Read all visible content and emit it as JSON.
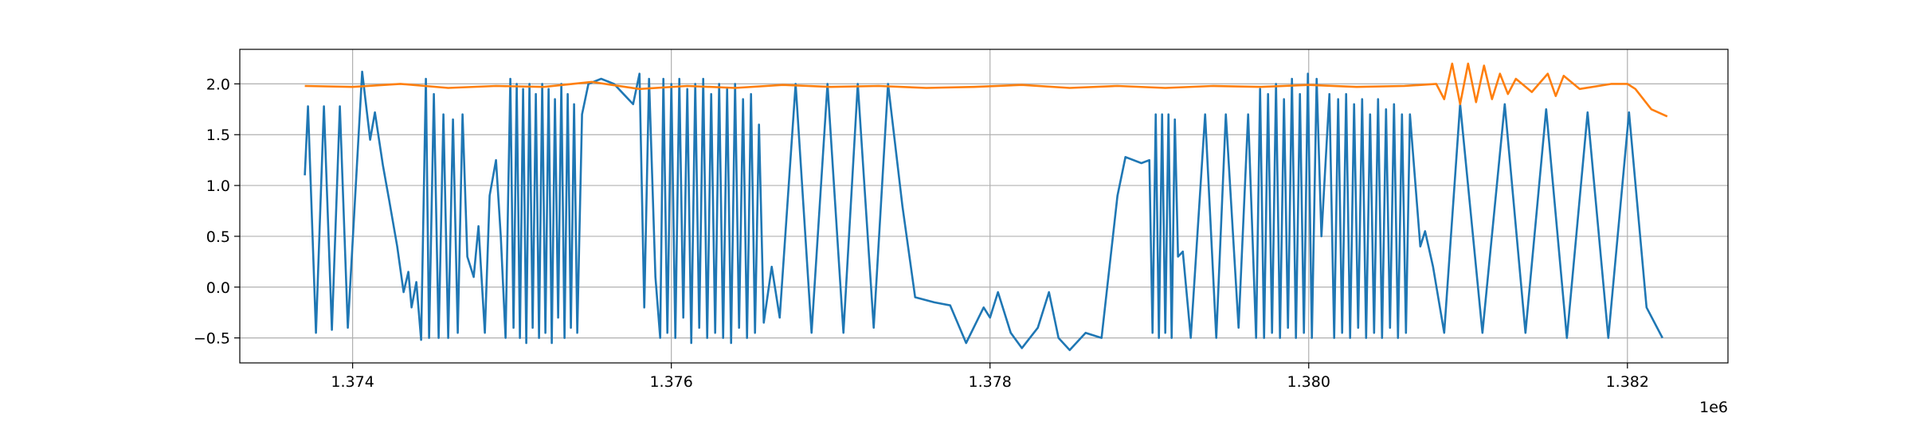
{
  "chart_data": {
    "type": "line",
    "xlim": [
      1373292,
      1382631
    ],
    "ylim": [
      -0.746,
      2.34
    ],
    "grid": true,
    "xticks": [
      {
        "value": 1374000,
        "label": "1.374"
      },
      {
        "value": 1376000,
        "label": "1.376"
      },
      {
        "value": 1378000,
        "label": "1.378"
      },
      {
        "value": 1380000,
        "label": "1.380"
      },
      {
        "value": 1382000,
        "label": "1.382"
      }
    ],
    "x_offset_label": "1e6",
    "yticks": [
      {
        "value": -0.5,
        "label": "−0.5"
      },
      {
        "value": 0,
        "label": "0.0"
      },
      0.5,
      {
        "value": 1,
        "label": "1.0"
      },
      1.5,
      {
        "value": 2,
        "label": "2.0"
      }
    ],
    "series": [
      {
        "color": "#1f77b4",
        "x": [
          1373700,
          1373720,
          1373770,
          1373820,
          1373870,
          1373920,
          1373970,
          1374060,
          1374110,
          1374140,
          1374190,
          1374230,
          1374280,
          1374320,
          1374350,
          1374370,
          1374400,
          1374430,
          1374460,
          1374480,
          1374510,
          1374540,
          1374570,
          1374600,
          1374630,
          1374660,
          1374690,
          1374720,
          1374760,
          1374790,
          1374830,
          1374860,
          1374900,
          1374930,
          1374960,
          1374990,
          1375010,
          1375030,
          1375050,
          1375070,
          1375090,
          1375110,
          1375130,
          1375150,
          1375170,
          1375190,
          1375210,
          1375230,
          1375250,
          1375270,
          1375290,
          1375310,
          1375330,
          1375350,
          1375370,
          1375390,
          1375410,
          1375440,
          1375480,
          1375560,
          1375640,
          1375700,
          1375760,
          1375800,
          1375830,
          1375860,
          1375900,
          1375930,
          1375950,
          1375975,
          1376000,
          1376025,
          1376050,
          1376075,
          1376100,
          1376125,
          1376150,
          1376175,
          1376200,
          1376225,
          1376250,
          1376275,
          1376300,
          1376325,
          1376350,
          1376375,
          1376400,
          1376425,
          1376450,
          1376475,
          1376500,
          1376525,
          1376550,
          1376580,
          1376630,
          1376680,
          1376780,
          1376880,
          1376980,
          1377080,
          1377170,
          1377270,
          1377360,
          1377450,
          1377530,
          1377650,
          1377750,
          1377850,
          1377960,
          1378000,
          1378050,
          1378130,
          1378200,
          1378300,
          1378370,
          1378430,
          1378500,
          1378600,
          1378700,
          1378800,
          1378850,
          1378950,
          1379000,
          1379020,
          1379040,
          1379060,
          1379080,
          1379100,
          1379120,
          1379140,
          1379160,
          1379180,
          1379210,
          1379260,
          1379350,
          1379420,
          1379480,
          1379560,
          1379620,
          1379670,
          1379695,
          1379720,
          1379745,
          1379770,
          1379795,
          1379820,
          1379845,
          1379870,
          1379895,
          1379920,
          1379945,
          1379970,
          1379995,
          1380020,
          1380050,
          1380080,
          1380130,
          1380160,
          1380185,
          1380210,
          1380235,
          1380260,
          1380285,
          1380310,
          1380335,
          1380360,
          1380385,
          1380410,
          1380435,
          1380460,
          1380485,
          1380510,
          1380535,
          1380560,
          1380585,
          1380610,
          1380635,
          1380700,
          1380730,
          1380780,
          1380850,
          1380950,
          1381090,
          1381230,
          1381360,
          1381490,
          1381620,
          1381750,
          1381880,
          1382010,
          1382120,
          1382220
        ],
        "values": [
          1.1,
          1.78,
          -0.45,
          1.78,
          -0.42,
          1.78,
          -0.4,
          2.12,
          1.45,
          1.72,
          1.2,
          0.85,
          0.4,
          -0.05,
          0.15,
          -0.2,
          0.05,
          -0.52,
          2.05,
          -0.5,
          1.9,
          -0.5,
          1.7,
          -0.5,
          1.65,
          -0.45,
          1.7,
          0.3,
          0.1,
          0.6,
          -0.45,
          0.9,
          1.25,
          0.5,
          -0.5,
          2.05,
          -0.4,
          2.0,
          -0.5,
          1.95,
          -0.55,
          2.0,
          -0.4,
          1.9,
          -0.5,
          2.0,
          -0.45,
          1.95,
          -0.55,
          1.85,
          -0.3,
          2.0,
          -0.5,
          1.9,
          -0.4,
          1.8,
          -0.45,
          1.7,
          2.0,
          2.05,
          2.0,
          1.9,
          1.8,
          2.1,
          -0.2,
          2.05,
          0.1,
          -0.5,
          2.05,
          -0.45,
          2.0,
          -0.5,
          2.05,
          -0.3,
          1.95,
          -0.55,
          2.0,
          -0.4,
          2.05,
          -0.5,
          1.9,
          -0.45,
          2.0,
          -0.5,
          1.95,
          -0.55,
          2.0,
          -0.4,
          1.85,
          -0.5,
          1.9,
          -0.45,
          1.6,
          -0.35,
          0.2,
          -0.3,
          2.0,
          -0.45,
          2.0,
          -0.45,
          2.0,
          -0.4,
          2.0,
          0.8,
          -0.1,
          -0.15,
          -0.18,
          -0.55,
          -0.2,
          -0.3,
          -0.05,
          -0.45,
          -0.6,
          -0.4,
          -0.05,
          -0.5,
          -0.62,
          -0.45,
          -0.5,
          0.9,
          1.28,
          1.22,
          1.25,
          -0.45,
          1.7,
          -0.5,
          1.7,
          -0.45,
          1.7,
          -0.5,
          1.65,
          0.3,
          0.35,
          -0.5,
          1.7,
          -0.5,
          1.7,
          -0.4,
          1.7,
          -0.5,
          1.95,
          -0.5,
          1.9,
          -0.45,
          2.0,
          -0.5,
          1.85,
          -0.4,
          2.05,
          -0.5,
          1.9,
          -0.45,
          2.1,
          -0.5,
          2.05,
          0.5,
          1.9,
          -0.5,
          1.85,
          -0.45,
          1.9,
          -0.5,
          1.8,
          -0.4,
          1.85,
          -0.5,
          1.7,
          -0.45,
          1.85,
          -0.5,
          1.75,
          -0.4,
          1.8,
          -0.5,
          1.7,
          -0.45,
          1.7,
          0.4,
          0.55,
          0.2,
          -0.45,
          1.8,
          -0.45,
          1.8,
          -0.45,
          1.75,
          -0.5,
          1.72,
          -0.5,
          1.72,
          -0.2,
          -0.5
        ]
      },
      {
        "color": "#ff7f0e",
        "x": [
          1373700,
          1374000,
          1374300,
          1374600,
          1374900,
          1375200,
          1375500,
          1375800,
          1376100,
          1376400,
          1376700,
          1377000,
          1377300,
          1377600,
          1377900,
          1378200,
          1378500,
          1378800,
          1379100,
          1379400,
          1379700,
          1380000,
          1380300,
          1380600,
          1380800,
          1380850,
          1380900,
          1380950,
          1381000,
          1381050,
          1381100,
          1381150,
          1381200,
          1381250,
          1381300,
          1381400,
          1381500,
          1381550,
          1381600,
          1381700,
          1381900,
          1382000,
          1382050,
          1382100,
          1382150,
          1382250
        ],
        "values": [
          1.98,
          1.97,
          2.0,
          1.96,
          1.98,
          1.97,
          2.02,
          1.95,
          1.98,
          1.96,
          1.99,
          1.97,
          1.98,
          1.96,
          1.97,
          1.99,
          1.96,
          1.98,
          1.96,
          1.98,
          1.97,
          1.99,
          1.97,
          1.98,
          2.0,
          1.85,
          2.2,
          1.8,
          2.2,
          1.82,
          2.18,
          1.85,
          2.1,
          1.9,
          2.05,
          1.92,
          2.1,
          1.88,
          2.08,
          1.95,
          2.0,
          2.0,
          1.95,
          1.85,
          1.75,
          1.68
        ]
      }
    ]
  }
}
